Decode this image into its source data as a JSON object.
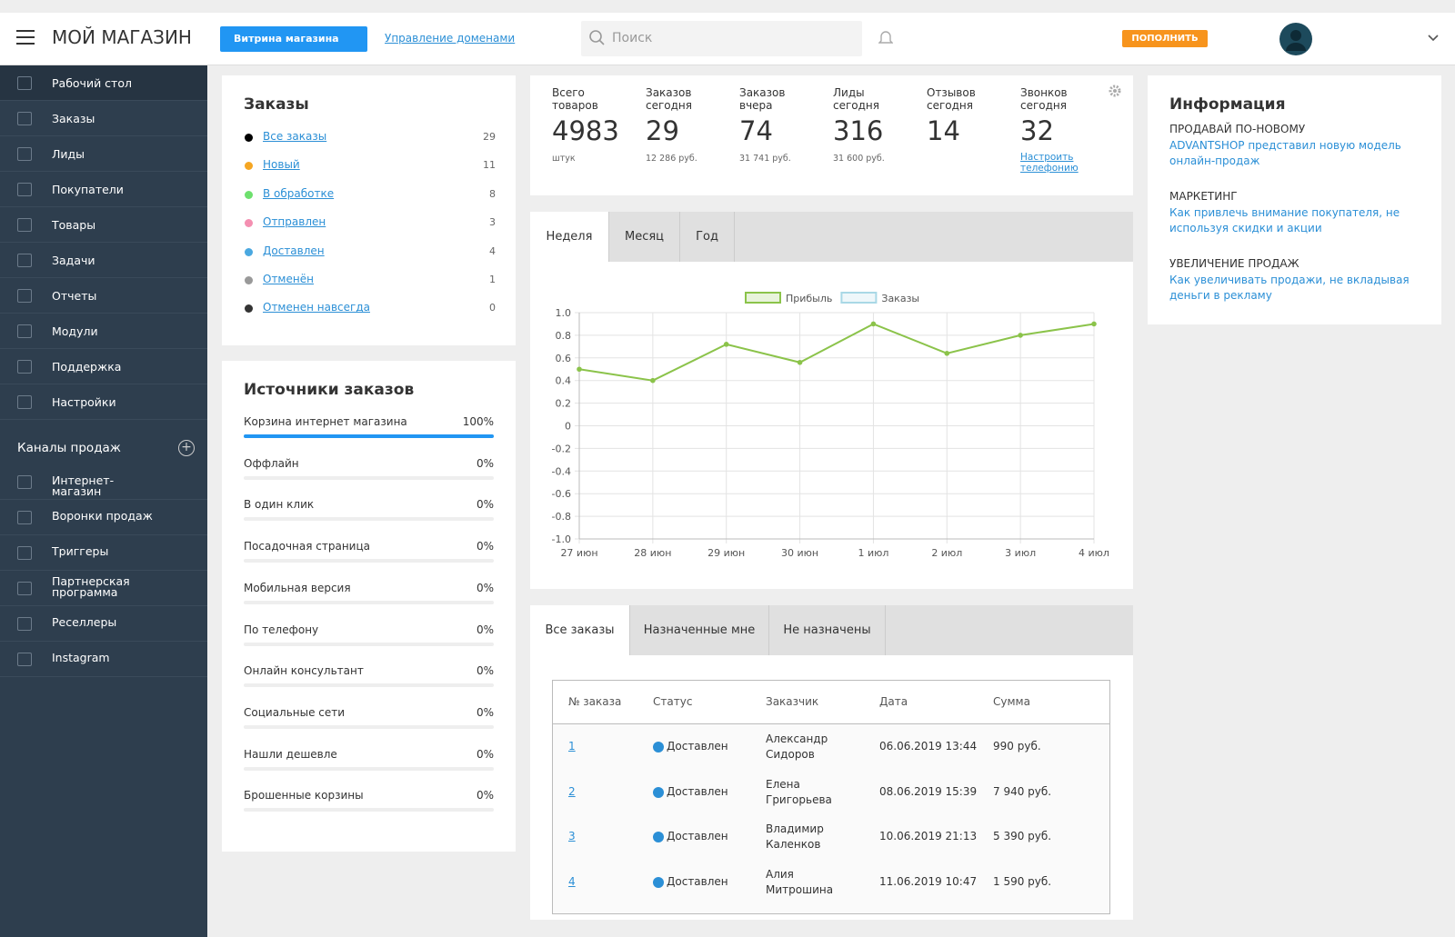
{
  "header": {
    "title": "МОЙ МАГАЗИН",
    "storefront_button": "Витрина магазина",
    "domains_link": "Управление доменами",
    "search_placeholder": "Поиск",
    "topup_button": "ПОПОЛНИТЬ"
  },
  "sidebar": {
    "items": [
      "Рабочий стол",
      "Заказы",
      "Лиды",
      "Покупатели",
      "Товары",
      "Задачи",
      "Отчеты",
      "Модули",
      "Поддержка",
      "Настройки"
    ],
    "channels_title": "Каналы продаж",
    "channels": [
      "Интернет-магазин",
      "Воронки продаж",
      "Триггеры",
      "Партнерская программа",
      "Реселлеры",
      "Instagram"
    ]
  },
  "orders": {
    "title": "Заказы",
    "statuses": [
      {
        "name": "Все заказы",
        "count": 29,
        "color": "#000000"
      },
      {
        "name": "Новый",
        "count": 11,
        "color": "#f5a623"
      },
      {
        "name": "В обработке",
        "count": 8,
        "color": "#6ee06e"
      },
      {
        "name": "Отправлен",
        "count": 3,
        "color": "#f48fb1"
      },
      {
        "name": "Доставлен",
        "count": 4,
        "color": "#4aa8e0"
      },
      {
        "name": "Отменён",
        "count": 1,
        "color": "#999999"
      },
      {
        "name": "Отменен навсегда",
        "count": 0,
        "color": "#333333"
      }
    ]
  },
  "sources": {
    "title": "Источники заказов",
    "items": [
      {
        "name": "Корзина интернет магазина",
        "percent": 100,
        "percent_label": "100%"
      },
      {
        "name": "Оффлайн",
        "percent": 0,
        "percent_label": "0%"
      },
      {
        "name": "В один клик",
        "percent": 0,
        "percent_label": "0%"
      },
      {
        "name": "Посадочная страница",
        "percent": 0,
        "percent_label": "0%"
      },
      {
        "name": "Мобильная версия",
        "percent": 0,
        "percent_label": "0%"
      },
      {
        "name": "По телефону",
        "percent": 0,
        "percent_label": "0%"
      },
      {
        "name": "Онлайн консультант",
        "percent": 0,
        "percent_label": "0%"
      },
      {
        "name": "Социальные сети",
        "percent": 0,
        "percent_label": "0%"
      },
      {
        "name": "Нашли дешевле",
        "percent": 0,
        "percent_label": "0%"
      },
      {
        "name": "Брошенные корзины",
        "percent": 0,
        "percent_label": "0%"
      }
    ]
  },
  "stats": {
    "items": [
      {
        "label": "Всего товаров",
        "value": 4983,
        "sub": "штук"
      },
      {
        "label": "Заказов сегодня",
        "value": 29,
        "sub": "12 286 руб."
      },
      {
        "label": "Заказов вчера",
        "value": 74,
        "sub": "31 741 руб."
      },
      {
        "label": "Лиды сегодня",
        "value": 316,
        "sub": "31 600 руб."
      },
      {
        "label": "Отзывов сегодня",
        "value": 14
      },
      {
        "label": "Звонков сегодня",
        "value": 32
      }
    ],
    "link": "Настроить телефонию"
  },
  "chart_tabs": [
    "Неделя",
    "Месяц",
    "Год"
  ],
  "chart_data": {
    "type": "line",
    "categories": [
      "27 июн",
      "28 июн",
      "29 июн",
      "30 июн",
      "1 июл",
      "2 июл",
      "3 июл",
      "4 июл"
    ],
    "series": [
      {
        "name": "Прибыль",
        "color": "#8bc34a",
        "values": [
          0.5,
          0.4,
          0.72,
          0.56,
          0.9,
          0.64,
          0.8,
          0.9
        ]
      },
      {
        "name": "Заказы",
        "color": "#a9d8e6",
        "values": [
          null,
          null,
          null,
          null,
          null,
          null,
          null,
          null
        ]
      }
    ],
    "ylim": [
      -1,
      1
    ],
    "yticks": [
      {
        "value": 1,
        "label": "1.0"
      },
      0.8,
      0.6,
      0.4,
      0.2,
      0,
      -0.2,
      -0.4,
      -0.6,
      -0.8,
      {
        "value": -1,
        "label": "-1.0"
      }
    ],
    "grid": true
  },
  "table": {
    "tabs": [
      "Все заказы",
      "Назначенные мне",
      "Не назначены"
    ],
    "columns": [
      "№ заказа",
      "Статус",
      "Заказчик",
      "Дата",
      "Сумма"
    ],
    "rows": [
      [
        "1",
        "Доставлен",
        "Александр Сидоров",
        "06.06.2019 13:44",
        "990 руб."
      ],
      [
        "2",
        "Доставлен",
        "Елена Григорьева",
        "08.06.2019 15:39",
        "7 940 руб."
      ],
      [
        "3",
        "Доставлен",
        "Владимир Каленков",
        "10.06.2019 21:13",
        "5 390 руб."
      ],
      [
        "4",
        "Доставлен",
        "Алия Митрошина",
        "11.06.2019 10:47",
        "1 590 руб."
      ]
    ]
  },
  "info": {
    "title": "Информация",
    "items": [
      {
        "heading": "ПРОДАВАЙ ПО-НОВОМУ",
        "text": "ADVANTSHOP представил новую модель онлайн-продаж"
      },
      {
        "heading": "МАРКЕТИНГ",
        "text": "Как привлечь внимание покупателя, не используя скидки и акции"
      },
      {
        "heading": "УВЕЛИЧЕНИЕ ПРОДАЖ",
        "text": "Как увеличивать продажи, не вкладывая деньги в рекламу"
      }
    ]
  }
}
